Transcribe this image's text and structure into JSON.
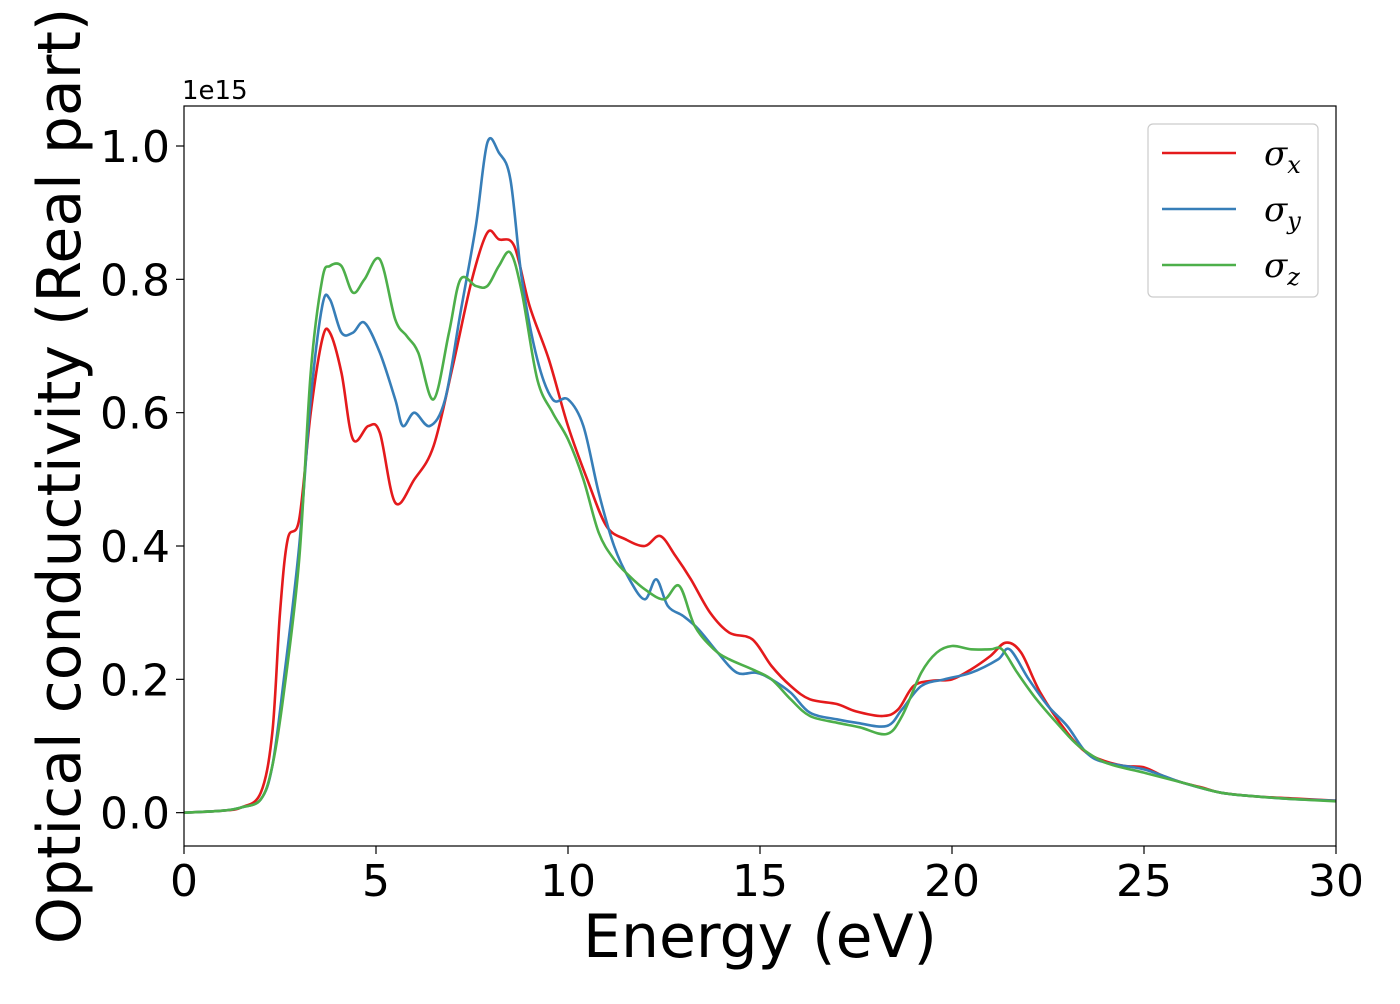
{
  "chart_data": {
    "type": "line",
    "xlabel": "Energy (eV)",
    "ylabel": "Optical conductivity (Real part)",
    "y_offset_label": "1e15",
    "xlim": [
      0,
      30
    ],
    "ylim": [
      -0.05,
      1.06
    ],
    "x_ticks": [
      0,
      5,
      10,
      15,
      20,
      25,
      30
    ],
    "x_tick_labels": [
      "0",
      "5",
      "10",
      "15",
      "20",
      "25",
      "30"
    ],
    "y_ticks": [
      0.0,
      0.2,
      0.4,
      0.6,
      0.8,
      1.0
    ],
    "y_tick_labels": [
      "0.0",
      "0.2",
      "0.4",
      "0.6",
      "0.8",
      "1.0"
    ],
    "grid": false,
    "legend_position": "top-right",
    "series": [
      {
        "name": "σx",
        "symbol": "σ",
        "subscript": "x",
        "color": "#e41a1c",
        "x": [
          0,
          1,
          1.5,
          2,
          2.3,
          2.5,
          2.7,
          3,
          3.3,
          3.6,
          3.8,
          4.1,
          4.4,
          4.8,
          5.1,
          5.5,
          6,
          6.5,
          7,
          7.5,
          7.9,
          8.2,
          8.6,
          9,
          9.5,
          10,
          10.5,
          11,
          11.5,
          12,
          12.4,
          12.8,
          13.2,
          13.7,
          14.2,
          14.8,
          15.3,
          15.8,
          16.3,
          17,
          17.5,
          18.2,
          18.6,
          19,
          19.5,
          20,
          20.5,
          21,
          21.4,
          21.8,
          22.3,
          23,
          23.5,
          24,
          24.5,
          25,
          25.5,
          26,
          26.5,
          27,
          28,
          29,
          30
        ],
        "y": [
          0.0,
          0.003,
          0.008,
          0.03,
          0.12,
          0.3,
          0.41,
          0.44,
          0.6,
          0.71,
          0.72,
          0.66,
          0.56,
          0.58,
          0.57,
          0.465,
          0.5,
          0.55,
          0.67,
          0.8,
          0.87,
          0.86,
          0.85,
          0.76,
          0.68,
          0.58,
          0.5,
          0.43,
          0.41,
          0.4,
          0.415,
          0.385,
          0.35,
          0.3,
          0.27,
          0.26,
          0.22,
          0.19,
          0.17,
          0.163,
          0.152,
          0.145,
          0.155,
          0.19,
          0.198,
          0.2,
          0.215,
          0.235,
          0.255,
          0.24,
          0.18,
          0.12,
          0.09,
          0.077,
          0.07,
          0.068,
          0.055,
          0.045,
          0.038,
          0.03,
          0.024,
          0.021,
          0.018
        ]
      },
      {
        "name": "σy",
        "symbol": "σ",
        "subscript": "y",
        "color": "#377eb8",
        "x": [
          0,
          1,
          1.5,
          2,
          2.3,
          2.6,
          3,
          3.3,
          3.6,
          3.8,
          4.1,
          4.4,
          4.7,
          5.1,
          5.5,
          5.7,
          6,
          6.4,
          6.8,
          7.2,
          7.6,
          7.9,
          8.2,
          8.5,
          8.8,
          9.2,
          9.6,
          10,
          10.4,
          10.8,
          11.2,
          11.6,
          12,
          12.3,
          12.6,
          13,
          13.4,
          13.9,
          14.4,
          14.9,
          15.3,
          15.8,
          16.3,
          17,
          17.5,
          18.3,
          18.7,
          19.2,
          19.8,
          20.5,
          21.2,
          21.5,
          22,
          22.5,
          23,
          23.5,
          24,
          25,
          26,
          27,
          28,
          29,
          30
        ],
        "y": [
          0.0,
          0.003,
          0.008,
          0.02,
          0.07,
          0.2,
          0.4,
          0.62,
          0.76,
          0.77,
          0.72,
          0.72,
          0.735,
          0.69,
          0.62,
          0.58,
          0.6,
          0.58,
          0.62,
          0.75,
          0.88,
          1.005,
          0.99,
          0.95,
          0.8,
          0.68,
          0.62,
          0.62,
          0.58,
          0.48,
          0.4,
          0.35,
          0.32,
          0.35,
          0.31,
          0.295,
          0.275,
          0.24,
          0.21,
          0.21,
          0.2,
          0.18,
          0.15,
          0.14,
          0.135,
          0.13,
          0.155,
          0.19,
          0.2,
          0.21,
          0.23,
          0.245,
          0.2,
          0.16,
          0.13,
          0.09,
          0.075,
          0.065,
          0.045,
          0.03,
          0.024,
          0.02,
          0.018
        ]
      },
      {
        "name": "σz",
        "symbol": "σ",
        "subscript": "z",
        "color": "#4daf4a",
        "x": [
          0,
          1,
          1.5,
          2,
          2.3,
          2.6,
          3,
          3.3,
          3.6,
          3.8,
          4.1,
          4.4,
          4.7,
          5.1,
          5.5,
          5.8,
          6.1,
          6.5,
          6.9,
          7.2,
          7.6,
          7.9,
          8.2,
          8.5,
          8.8,
          9.2,
          9.6,
          10,
          10.4,
          10.8,
          11.2,
          11.6,
          12,
          12.5,
          12.9,
          13.3,
          13.8,
          14.2,
          14.8,
          15.3,
          15.8,
          16.3,
          17,
          17.6,
          18.3,
          18.7,
          19.2,
          19.6,
          20,
          20.5,
          21,
          21.3,
          21.7,
          22.2,
          22.8,
          23.3,
          24,
          25,
          26,
          27,
          28,
          29,
          30
        ],
        "y": [
          0.0,
          0.003,
          0.008,
          0.02,
          0.07,
          0.18,
          0.38,
          0.66,
          0.8,
          0.82,
          0.82,
          0.78,
          0.8,
          0.83,
          0.74,
          0.715,
          0.69,
          0.62,
          0.72,
          0.8,
          0.79,
          0.79,
          0.82,
          0.84,
          0.78,
          0.65,
          0.6,
          0.56,
          0.5,
          0.42,
          0.38,
          0.355,
          0.335,
          0.32,
          0.34,
          0.28,
          0.245,
          0.23,
          0.215,
          0.2,
          0.17,
          0.145,
          0.135,
          0.128,
          0.118,
          0.145,
          0.21,
          0.24,
          0.25,
          0.245,
          0.245,
          0.245,
          0.21,
          0.17,
          0.13,
          0.1,
          0.075,
          0.06,
          0.045,
          0.03,
          0.024,
          0.02,
          0.017
        ]
      }
    ]
  }
}
